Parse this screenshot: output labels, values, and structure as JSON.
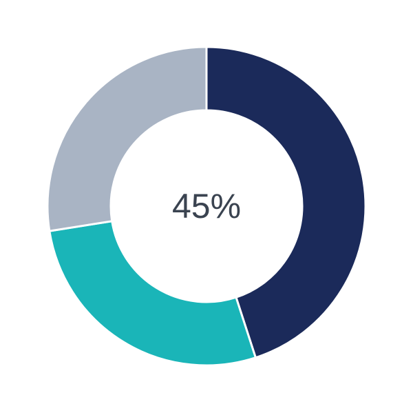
{
  "chart_data": {
    "type": "pie",
    "variant": "donut",
    "title": "",
    "center_label": "45%",
    "values": [
      45,
      27.5,
      27.5
    ],
    "colors": [
      "#1b2a5a",
      "#1ab5b8",
      "#a9b4c4"
    ],
    "start": "top",
    "direction": "clockwise",
    "legend": "none"
  }
}
